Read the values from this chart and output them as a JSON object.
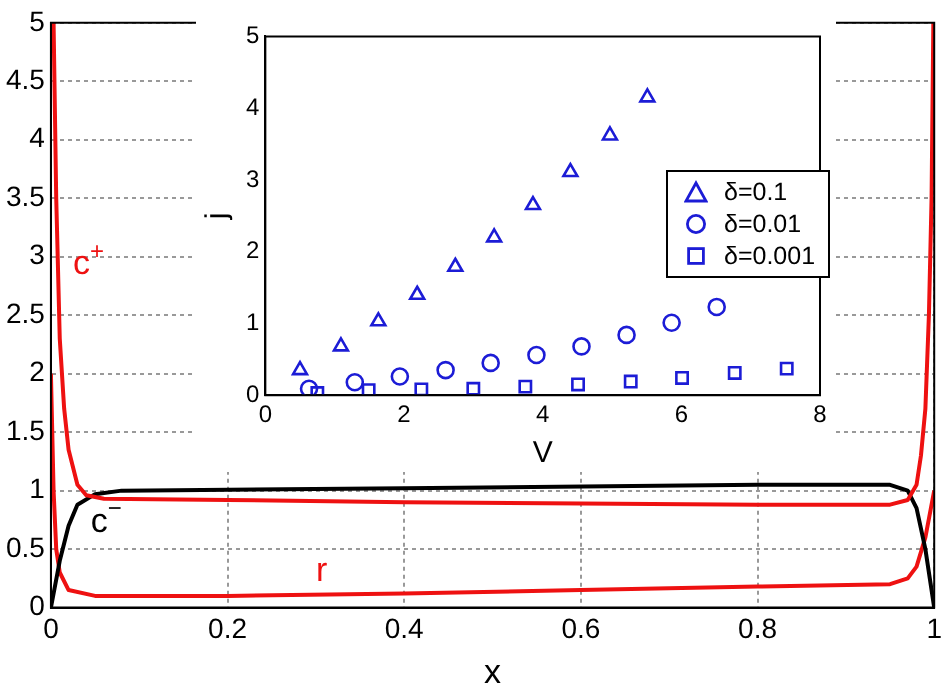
{
  "chart_data": [
    {
      "type": "line",
      "xlabel": "x",
      "xlim": [
        0,
        1
      ],
      "xticks": [
        0,
        0.2,
        0.4,
        0.6,
        0.8,
        1
      ],
      "ylim": [
        0,
        5
      ],
      "yticks": [
        0,
        0.5,
        1,
        1.5,
        2,
        2.5,
        3,
        3.5,
        4,
        4.5,
        5
      ],
      "grid": true,
      "marker": "none",
      "line_style": "solid",
      "series": [
        {
          "name": "c$^{+}$",
          "color": "#ee1111",
          "x": [
            0.003,
            0.006,
            0.01,
            0.015,
            0.02,
            0.03,
            0.04,
            0.06,
            0.2,
            0.4,
            0.6,
            0.8,
            0.95,
            0.97,
            0.98,
            0.985,
            0.99,
            0.994,
            0.997,
            0.999
          ],
          "values": [
            5,
            3.5,
            2.3,
            1.7,
            1.35,
            1.05,
            0.96,
            0.93,
            0.92,
            0.9,
            0.89,
            0.88,
            0.88,
            0.92,
            1.05,
            1.3,
            1.7,
            2.5,
            3.5,
            5
          ]
        },
        {
          "name": "c$^{−}$",
          "color": "#000000",
          "x": [
            0,
            0.01,
            0.02,
            0.03,
            0.05,
            0.08,
            0.4,
            0.8,
            0.95,
            0.97,
            0.98,
            0.99,
            0.995,
            1
          ],
          "values": [
            0,
            0.4,
            0.7,
            0.88,
            0.97,
            1.0,
            1.02,
            1.05,
            1.05,
            1.0,
            0.85,
            0.5,
            0.25,
            0
          ]
        },
        {
          "name": "r",
          "color": "#ee1111",
          "x": [
            0,
            0.003,
            0.006,
            0.01,
            0.02,
            0.05,
            0.2,
            0.4,
            0.6,
            0.8,
            0.95,
            0.97,
            0.98,
            0.99,
            1
          ],
          "values": [
            2.0,
            1.0,
            0.5,
            0.3,
            0.15,
            0.1,
            0.1,
            0.12,
            0.15,
            0.18,
            0.2,
            0.25,
            0.35,
            0.6,
            1.0
          ]
        }
      ]
    },
    {
      "type": "scatter",
      "xlabel": "V",
      "ylabel": "j",
      "xlim": [
        0,
        8
      ],
      "xticks": [
        0,
        2,
        4,
        6,
        8
      ],
      "ylim": [
        0,
        5
      ],
      "yticks": [
        0,
        1,
        2,
        3,
        4,
        5
      ],
      "legend": "right",
      "series": [
        {
          "name": "δ=0.1",
          "color": "#1c1cd6",
          "marker": "triangle",
          "x": [
            0.5,
            1.09,
            1.63,
            2.19,
            2.74,
            3.3,
            3.86,
            4.4,
            4.97,
            5.51
          ],
          "values": [
            0.35,
            0.68,
            1.03,
            1.4,
            1.79,
            2.2,
            2.65,
            3.11,
            3.62,
            4.15
          ]
        },
        {
          "name": "δ=0.01",
          "color": "#1c1cd6",
          "marker": "circle",
          "x": [
            0.63,
            1.29,
            1.94,
            2.6,
            3.25,
            3.91,
            4.56,
            5.21,
            5.86,
            6.51
          ],
          "values": [
            0.09,
            0.18,
            0.26,
            0.35,
            0.45,
            0.56,
            0.68,
            0.84,
            1.01,
            1.23
          ]
        },
        {
          "name": "δ=0.001",
          "color": "#1c1cd6",
          "marker": "square",
          "x": [
            0.75,
            1.49,
            2.25,
            3.0,
            3.75,
            4.51,
            5.27,
            6.01,
            6.77,
            7.52
          ],
          "values": [
            0.03,
            0.07,
            0.08,
            0.09,
            0.12,
            0.15,
            0.19,
            0.24,
            0.31,
            0.37
          ]
        }
      ]
    }
  ]
}
